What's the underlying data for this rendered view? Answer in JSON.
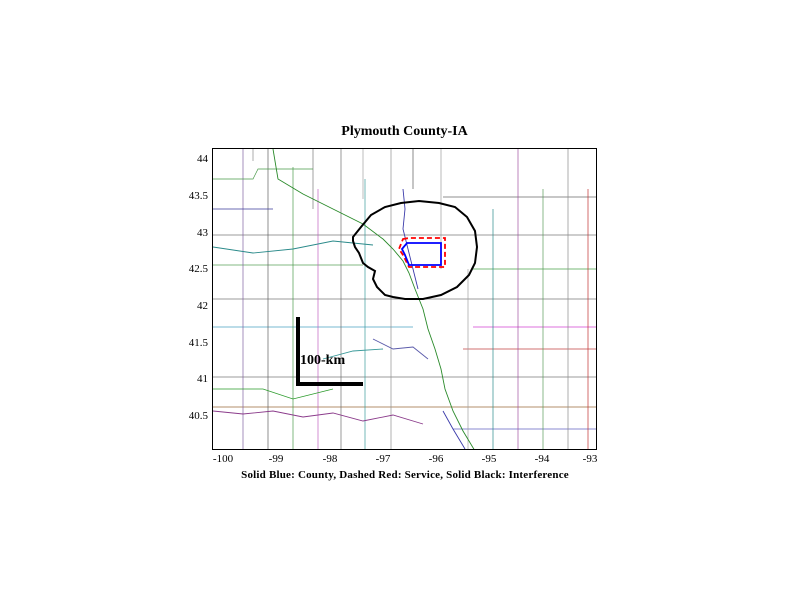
{
  "title": "Plymouth County-IA",
  "caption": "Solid Blue: County, Dashed Red: Service, Solid Black: Interference",
  "scale_bar_label": "100-km",
  "axes": {
    "x_ticks": [
      "-100",
      "-99",
      "-98",
      "-97",
      "-96",
      "-95",
      "-94",
      "-93"
    ],
    "y_ticks": [
      "44",
      "43.5",
      "43",
      "42.5",
      "42",
      "41.5",
      "41",
      "40.5"
    ]
  },
  "legend_colors": {
    "county": "#0000ff",
    "service": "#ff0000",
    "interference": "#000000"
  },
  "map_features": {
    "county_boundary": "solid blue",
    "service_contour": "dashed red",
    "interference_contour": "solid black"
  }
}
